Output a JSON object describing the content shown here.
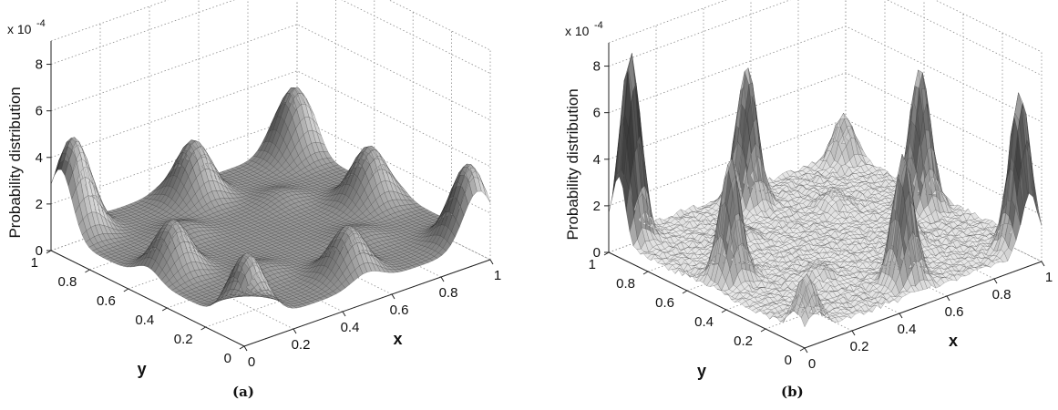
{
  "figure": {
    "captions": [
      "(a)",
      "(b)"
    ]
  },
  "chart_data": [
    {
      "type": "surface",
      "caption": "(a)",
      "zlabel": "Probability distribution",
      "xlabel": "x",
      "ylabel": "y",
      "z_multiplier": "x 10",
      "z_exponent": "-4",
      "xlim": [
        0,
        1
      ],
      "ylim": [
        0,
        1
      ],
      "zlim": [
        0,
        9
      ],
      "x_ticks": [
        "0",
        "0.2",
        "0.4",
        "0.6",
        "0.8",
        "1"
      ],
      "y_ticks": [
        "0",
        "0.2",
        "0.4",
        "0.6",
        "0.8",
        "1"
      ],
      "z_ticks": [
        "0",
        "2",
        "4",
        "6",
        "8"
      ],
      "grid": true,
      "baseline": 0.8,
      "peak_width": 0.06,
      "peaks": [
        {
          "x": 0.05,
          "y": 0.95,
          "z": 4.9
        },
        {
          "x": 0.95,
          "y": 0.05,
          "z": 4.1
        },
        {
          "x": 0.95,
          "y": 0.95,
          "z": 3.7
        },
        {
          "x": 0.05,
          "y": 0.05,
          "z": 3.6
        },
        {
          "x": 0.5,
          "y": 0.9,
          "z": 3.3
        },
        {
          "x": 0.9,
          "y": 0.5,
          "z": 3.2
        },
        {
          "x": 0.1,
          "y": 0.5,
          "z": 3.0
        },
        {
          "x": 0.5,
          "y": 0.1,
          "z": 2.9
        },
        {
          "x": 0.3,
          "y": 0.7,
          "z": 1.3
        },
        {
          "x": 0.7,
          "y": 0.3,
          "z": 1.2
        },
        {
          "x": 0.3,
          "y": 0.3,
          "z": 1.2
        },
        {
          "x": 0.7,
          "y": 0.7,
          "z": 1.2
        }
      ]
    },
    {
      "type": "surface",
      "caption": "(b)",
      "zlabel": "Probability distribution",
      "xlabel": "x",
      "ylabel": "y",
      "z_multiplier": "x 10",
      "z_exponent": "-4",
      "xlim": [
        0,
        1
      ],
      "ylim": [
        0,
        1
      ],
      "zlim": [
        0,
        9
      ],
      "x_ticks": [
        "0",
        "0.2",
        "0.4",
        "0.6",
        "0.8",
        "1"
      ],
      "y_ticks": [
        "0",
        "0.2",
        "0.4",
        "0.6",
        "0.8",
        "1"
      ],
      "z_ticks": [
        "0",
        "2",
        "4",
        "6",
        "8"
      ],
      "grid": true,
      "baseline": 0.6,
      "peak_width": 0.035,
      "noise": 0.25,
      "peaks": [
        {
          "x": 0.05,
          "y": 0.95,
          "z": 8.6
        },
        {
          "x": 0.95,
          "y": 0.05,
          "z": 7.4
        },
        {
          "x": 0.5,
          "y": 0.9,
          "z": 6.6
        },
        {
          "x": 0.9,
          "y": 0.5,
          "z": 6.7
        },
        {
          "x": 0.1,
          "y": 0.5,
          "z": 5.7
        },
        {
          "x": 0.5,
          "y": 0.1,
          "z": 6.1
        },
        {
          "x": 0.05,
          "y": 0.05,
          "z": 2.8
        },
        {
          "x": 0.95,
          "y": 0.95,
          "z": 2.6
        },
        {
          "x": 0.3,
          "y": 0.7,
          "z": 1.5
        },
        {
          "x": 0.7,
          "y": 0.3,
          "z": 1.6
        },
        {
          "x": 0.7,
          "y": 0.7,
          "z": 1.4
        },
        {
          "x": 0.3,
          "y": 0.3,
          "z": 1.4
        }
      ]
    }
  ]
}
